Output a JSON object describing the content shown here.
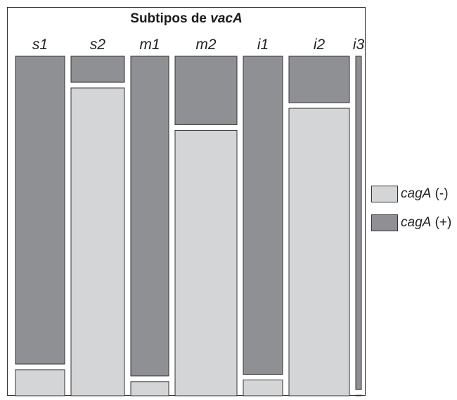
{
  "chart_data": {
    "type": "bar",
    "subtype": "stacked-mosaic",
    "title_prefix": "Subtipos de ",
    "title_italic": "vacA",
    "categories": [
      "s1",
      "s2",
      "m1",
      "m2",
      "i1",
      "i2",
      "i3"
    ],
    "relative_widths": [
      70,
      76,
      54,
      88,
      56,
      86,
      8
    ],
    "series": [
      {
        "values": [
          8.5,
          91.5,
          5,
          79,
          5.5,
          85.5,
          1
        ]
      },
      {
        "values": [
          91.5,
          8.5,
          95,
          21,
          94.5,
          14.5,
          99
        ]
      }
    ],
    "ylim": [
      0,
      100
    ],
    "stack_order": "top-to-bottom: cagA (+) above cagA (-)",
    "legend": {
      "placement": "right",
      "items": [
        {
          "italic": "cagA",
          "suffix": " (-)",
          "color": "#d4d5d7"
        },
        {
          "italic": "cagA",
          "suffix": " (+)",
          "color": "#8f9094"
        }
      ]
    },
    "colors": {
      "negative": "#d4d5d7",
      "positive": "#8f9094",
      "stroke": "#333333"
    }
  }
}
